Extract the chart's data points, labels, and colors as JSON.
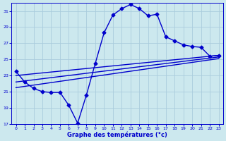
{
  "xlabel": "Graphe des températures (°c)",
  "bg_color": "#cce8ee",
  "grid_color": "#aaccdd",
  "line_color": "#0000cc",
  "xmin": -0.5,
  "xmax": 23.5,
  "ymin": 17,
  "ymax": 32,
  "yticks": [
    17,
    19,
    21,
    23,
    25,
    27,
    29,
    31
  ],
  "xticks": [
    0,
    1,
    2,
    3,
    4,
    5,
    6,
    7,
    8,
    9,
    10,
    11,
    12,
    13,
    14,
    15,
    16,
    17,
    18,
    19,
    20,
    21,
    22,
    23
  ],
  "main_curve_x": [
    0,
    1,
    2,
    3,
    4,
    5,
    6,
    7,
    8,
    9,
    10,
    11,
    12,
    13,
    14,
    15,
    16,
    17,
    18,
    19,
    20,
    21,
    22,
    23
  ],
  "main_curve_y": [
    23.5,
    22.2,
    21.4,
    21.0,
    20.9,
    20.9,
    19.3,
    17.1,
    20.6,
    24.5,
    28.3,
    30.5,
    31.3,
    31.8,
    31.3,
    30.4,
    30.6,
    27.8,
    27.3,
    26.8,
    26.6,
    26.5,
    25.4,
    25.5
  ],
  "trend1_x": [
    0,
    23
  ],
  "trend1_y": [
    23.0,
    25.5
  ],
  "trend2_x": [
    0,
    23
  ],
  "trend2_y": [
    22.2,
    25.3
  ],
  "trend3_x": [
    0,
    23
  ],
  "trend3_y": [
    21.5,
    25.1
  ],
  "marker_style": "D",
  "marker_size": 2.5,
  "line_width": 1.0
}
